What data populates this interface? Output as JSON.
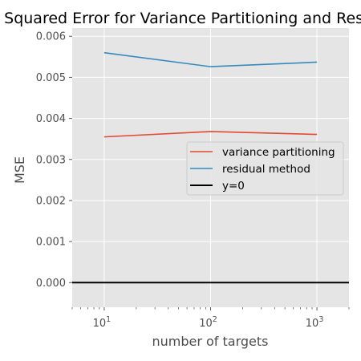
{
  "chart_data": {
    "type": "line",
    "title": "Mean Squared Error for Variance Partitioning and Residual Method",
    "xlabel": "number of targets",
    "ylabel": "MSE",
    "xscale": "log",
    "xlim": [
      5,
      2000
    ],
    "ylim": [
      -0.0006,
      0.0062
    ],
    "xticks": [
      {
        "value": 10,
        "base": "10",
        "exp": "1"
      },
      {
        "value": 100,
        "base": "10",
        "exp": "2"
      },
      {
        "value": 1000,
        "base": "10",
        "exp": "3"
      }
    ],
    "yticks": [
      {
        "value": 0.0,
        "label": "0.000"
      },
      {
        "value": 0.001,
        "label": "0.001"
      },
      {
        "value": 0.002,
        "label": "0.002"
      },
      {
        "value": 0.003,
        "label": "0.003"
      },
      {
        "value": 0.004,
        "label": "0.004"
      },
      {
        "value": 0.005,
        "label": "0.005"
      },
      {
        "value": 0.006,
        "label": "0.006"
      }
    ],
    "grid": true,
    "legend_position": "center-right",
    "x": [
      10,
      100,
      1000
    ],
    "series": [
      {
        "name": "variance partitioning",
        "color": "#E24A33",
        "values": [
          0.00355,
          0.00368,
          0.00361
        ]
      },
      {
        "name": "residual method",
        "color": "#348ABD",
        "values": [
          0.0056,
          0.00526,
          0.00537
        ]
      },
      {
        "name": "y=0",
        "color": "#000000",
        "hline": 0.0
      }
    ]
  }
}
